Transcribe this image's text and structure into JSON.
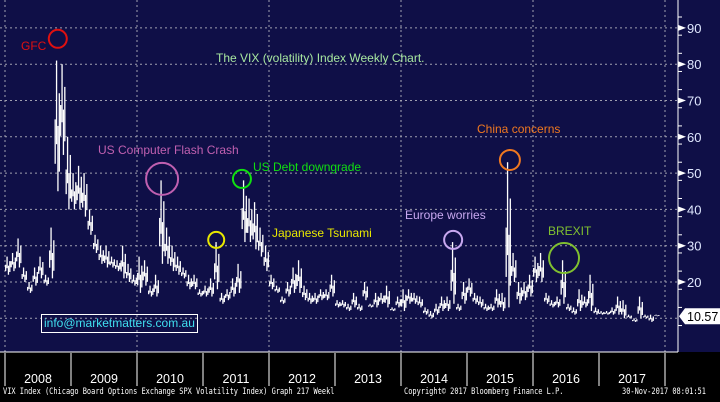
{
  "chart_data": {
    "type": "bar",
    "title": "The VIX (volatility) Index Weekly Chart.",
    "series_name": "VIX Index",
    "start_month": "2008-01",
    "monthly_high_low": [
      [
        27,
        22
      ],
      [
        28,
        23
      ],
      [
        32,
        24
      ],
      [
        24,
        20
      ],
      [
        20,
        17
      ],
      [
        24,
        19
      ],
      [
        27,
        21
      ],
      [
        22,
        19
      ],
      [
        35,
        21
      ],
      [
        81,
        45
      ],
      [
        80,
        55
      ],
      [
        60,
        40
      ],
      [
        50,
        40
      ],
      [
        52,
        40
      ],
      [
        50,
        38
      ],
      [
        40,
        33
      ],
      [
        33,
        28
      ],
      [
        30,
        25
      ],
      [
        30,
        24
      ],
      [
        27,
        24
      ],
      [
        26,
        23
      ],
      [
        30,
        21
      ],
      [
        25,
        20
      ],
      [
        22,
        19
      ],
      [
        27,
        17
      ],
      [
        26,
        19
      ],
      [
        19,
        16
      ],
      [
        22,
        16
      ],
      [
        48,
        25
      ],
      [
        35,
        25
      ],
      [
        30,
        23
      ],
      [
        27,
        22
      ],
      [
        24,
        21
      ],
      [
        22,
        18
      ],
      [
        22,
        18
      ],
      [
        18,
        16
      ],
      [
        19,
        16
      ],
      [
        21,
        16
      ],
      [
        31,
        18
      ],
      [
        17,
        14
      ],
      [
        18,
        15
      ],
      [
        21,
        16
      ],
      [
        25,
        17
      ],
      [
        48,
        31
      ],
      [
        43,
        31
      ],
      [
        42,
        29
      ],
      [
        35,
        27
      ],
      [
        30,
        23
      ],
      [
        22,
        18
      ],
      [
        19,
        17
      ],
      [
        16,
        14
      ],
      [
        20,
        16
      ],
      [
        24,
        17
      ],
      [
        26,
        17
      ],
      [
        19,
        15
      ],
      [
        17,
        14
      ],
      [
        17,
        14
      ],
      [
        18,
        15
      ],
      [
        18,
        15
      ],
      [
        22,
        16
      ],
      [
        15,
        13
      ],
      [
        15,
        13
      ],
      [
        14,
        12
      ],
      [
        17,
        13
      ],
      [
        14,
        12
      ],
      [
        20,
        15
      ],
      [
        14,
        13
      ],
      [
        17,
        13
      ],
      [
        17,
        14
      ],
      [
        19,
        13
      ],
      [
        13,
        12
      ],
      [
        16,
        13
      ],
      [
        18,
        12
      ],
      [
        18,
        14
      ],
      [
        17,
        14
      ],
      [
        16,
        13
      ],
      [
        13,
        11
      ],
      [
        12,
        10
      ],
      [
        14,
        11
      ],
      [
        16,
        12
      ],
      [
        16,
        12
      ],
      [
        31,
        14
      ],
      [
        14,
        12
      ],
      [
        20,
        14
      ],
      [
        21,
        16
      ],
      [
        17,
        14
      ],
      [
        16,
        13
      ],
      [
        14,
        12
      ],
      [
        14,
        12
      ],
      [
        18,
        13
      ],
      [
        17,
        12
      ],
      [
        53,
        13
      ],
      [
        28,
        20
      ],
      [
        20,
        14
      ],
      [
        20,
        15
      ],
      [
        22,
        16
      ],
      [
        27,
        20
      ],
      [
        28,
        20
      ],
      [
        17,
        14
      ],
      [
        15,
        13
      ],
      [
        16,
        13
      ],
      [
        26,
        14
      ],
      [
        14,
        12
      ],
      [
        13,
        11
      ],
      [
        18,
        12
      ],
      [
        16,
        13
      ],
      [
        22,
        12
      ],
      [
        13,
        11
      ],
      [
        12,
        11
      ],
      [
        12,
        11
      ],
      [
        13,
        11
      ],
      [
        16,
        11
      ],
      [
        15,
        10
      ],
      [
        11,
        10
      ],
      [
        10,
        9
      ],
      [
        16,
        10
      ],
      [
        11,
        10
      ],
      [
        11,
        9
      ],
      [
        11,
        10.57
      ]
    ],
    "last_value": "10.57",
    "x_tick_labels": [
      "2008",
      "2009",
      "2010",
      "2011",
      "2012",
      "2013",
      "2014",
      "2015",
      "2016",
      "2017"
    ],
    "y_tick_labels": [
      "20",
      "30",
      "40",
      "50",
      "60",
      "70",
      "80",
      "90"
    ],
    "ylim": [
      5,
      97
    ],
    "xlim": [
      "2008-01",
      "2017-12"
    ],
    "grid": true,
    "annotations": [
      {
        "text": "GFC",
        "date": 2008.8,
        "value": 87,
        "color": "#e01010"
      },
      {
        "text": "US Computer Flash Crash",
        "date": 2010.38,
        "value": 48.4,
        "color": "#c060b0"
      },
      {
        "text": "US Debt downgrade",
        "date": 2011.59,
        "value": 48.4,
        "color": "#10e010"
      },
      {
        "text": "Japanese Tsunami",
        "date": 2011.2,
        "value": 31.6,
        "color": "#e8e800"
      },
      {
        "text": "Europe worries",
        "date": 2014.79,
        "value": 31.6,
        "color": "#c8a8f0"
      },
      {
        "text": "China concerns",
        "date": 2015.65,
        "value": 53.6,
        "color": "#f07820"
      },
      {
        "text": "BREXIT",
        "date": 2016.47,
        "value": 26.6,
        "color": "#80c030"
      }
    ]
  },
  "colors": {
    "background": "#0f0f47",
    "title": "#a8e8a0",
    "email": "#40e0f0"
  },
  "watermark_email": "info@marketmatters.com.au",
  "footer": {
    "description": "VIX Index (Chicago Board Options Exchange SPX Volatility Index) Graph 217  Weekl",
    "copyright": "Copyright© 2017 Bloomberg Finance L.P.",
    "timestamp": "30-Nov-2017 08:01:51"
  }
}
